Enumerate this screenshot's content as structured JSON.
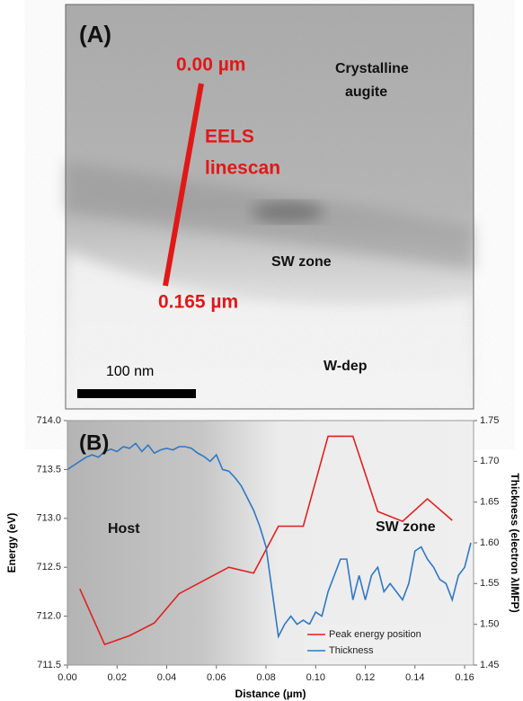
{
  "image_panel": {
    "label": "(A)",
    "scale_bar": "100 nm",
    "annotations": [
      "0.00 µm",
      "EELS",
      "linescan",
      "Crystalline",
      "augite",
      "SW zone",
      "0.165 µm",
      "W-dep"
    ]
  },
  "chart_data": {
    "type": "line",
    "label": "(B)",
    "xlabel": "Distance (µm)",
    "ylabel": "Energy (eV)",
    "y2label": "Thickness (electron λIMFP)",
    "annotations": [
      "Host",
      "SW zone"
    ],
    "xlim": [
      0,
      0.1636
    ],
    "ylim": [
      711.5,
      714.0
    ],
    "y2lim": [
      1.45,
      1.75
    ],
    "xticks": [
      {
        "value": 0,
        "label": "0.00"
      },
      0.02,
      0.04,
      0.06,
      0.08,
      {
        "value": 0.1,
        "label": "0.10"
      },
      {
        "value": 0.12,
        "label": "0.12"
      },
      {
        "value": 0.14,
        "label": "0.14"
      },
      {
        "value": 0.16,
        "label": "0.16"
      }
    ],
    "yticks": [
      711.5,
      {
        "value": 712,
        "label": "712.0"
      },
      712.5,
      {
        "value": 713,
        "label": "713.0"
      },
      713.5,
      {
        "value": 714,
        "label": "714.0"
      }
    ],
    "y2ticks": [
      1.45,
      {
        "value": 1.5,
        "label": "1.50"
      },
      1.55,
      {
        "value": 1.6,
        "label": "1.60"
      },
      1.65,
      {
        "value": 1.7,
        "label": "1.70"
      },
      1.75
    ],
    "legend": "lower right",
    "series": [
      {
        "name": "Peak energy position",
        "color": "#e02020",
        "axis": "y",
        "x": [
          0.005,
          0.015,
          0.025,
          0.035,
          0.045,
          0.065,
          0.075,
          0.085,
          0.095,
          0.105,
          0.115,
          0.125,
          0.135,
          0.145,
          0.155
        ],
        "values": [
          712.28,
          711.71,
          711.8,
          711.93,
          712.23,
          712.5,
          712.44,
          712.92,
          712.92,
          713.84,
          713.84,
          713.07,
          712.97,
          713.2,
          712.98
        ]
      },
      {
        "name": "Thickness",
        "color": "#2f78c4",
        "axis": "y2",
        "x": [
          0,
          0.0025,
          0.005,
          0.0075,
          0.01,
          0.0125,
          0.015,
          0.0175,
          0.02,
          0.0225,
          0.025,
          0.0275,
          0.03,
          0.0325,
          0.035,
          0.0375,
          0.04,
          0.0425,
          0.045,
          0.0475,
          0.05,
          0.0525,
          0.055,
          0.0575,
          0.06,
          0.0625,
          0.065,
          0.0675,
          0.07,
          0.0725,
          0.075,
          0.0775,
          0.08,
          0.0825,
          0.085,
          0.0875,
          0.09,
          0.0925,
          0.095,
          0.0975,
          0.1,
          0.1025,
          0.105,
          0.1075,
          0.11,
          0.1125,
          0.115,
          0.1175,
          0.12,
          0.1225,
          0.125,
          0.1275,
          0.13,
          0.1325,
          0.135,
          0.1375,
          0.14,
          0.1425,
          0.145,
          0.1475,
          0.15,
          0.1525,
          0.155,
          0.1575,
          0.16,
          0.1625
        ],
        "values": [
          1.69,
          1.695,
          1.7,
          1.705,
          1.708,
          1.705,
          1.712,
          1.715,
          1.712,
          1.718,
          1.716,
          1.722,
          1.712,
          1.72,
          1.71,
          1.714,
          1.716,
          1.714,
          1.718,
          1.718,
          1.716,
          1.71,
          1.706,
          1.7,
          1.708,
          1.69,
          1.688,
          1.68,
          1.67,
          1.655,
          1.64,
          1.62,
          1.595,
          1.54,
          1.485,
          1.5,
          1.51,
          1.5,
          1.505,
          1.5,
          1.515,
          1.51,
          1.54,
          1.56,
          1.58,
          1.58,
          1.53,
          1.56,
          1.53,
          1.56,
          1.57,
          1.54,
          1.55,
          1.54,
          1.53,
          1.55,
          1.59,
          1.595,
          1.58,
          1.57,
          1.555,
          1.55,
          1.53,
          1.56,
          1.57,
          1.6
        ]
      }
    ]
  }
}
